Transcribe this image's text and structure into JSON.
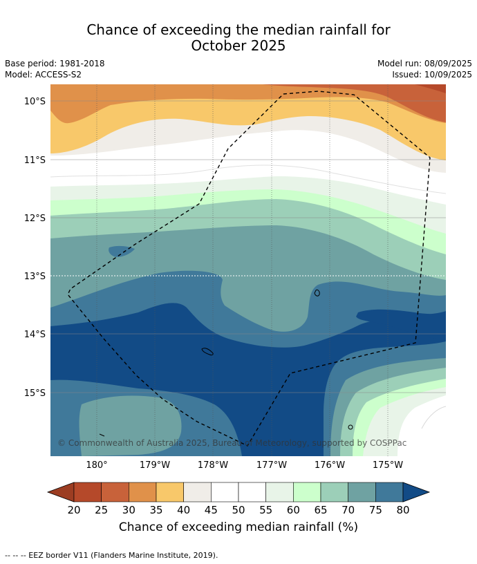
{
  "header": {
    "title_line1": "Chance of exceeding the median rainfall for",
    "title_line2": "October 2025",
    "base_period": "Base period: 1981-2018",
    "model": "Model: ACCESS-S2",
    "model_run": "Model run: 08/09/2025",
    "issued": "Issued: 10/09/2025"
  },
  "map": {
    "lat_labels": [
      "10°S",
      "11°S",
      "12°S",
      "13°S",
      "14°S",
      "15°S"
    ],
    "lon_labels": [
      "180°",
      "179°W",
      "178°W",
      "177°W",
      "176°W",
      "175°W"
    ],
    "copyright": "© Commonwealth of Australia 2025, Bureau of Meteorology, supported by COSPPac",
    "eez_boundary_style": "dashed"
  },
  "colorbar": {
    "ticks": [
      "20",
      "25",
      "30",
      "35",
      "40",
      "45",
      "50",
      "55",
      "60",
      "65",
      "70",
      "75",
      "80"
    ],
    "colors": [
      "#9c3d22",
      "#b5492a",
      "#c8623a",
      "#e0914a",
      "#f8c86a",
      "#f0ede8",
      "#ffffff",
      "#ffffff",
      "#e8f4e8",
      "#ccffcc",
      "#9ccfb8",
      "#6fa2a2",
      "#40799a",
      "#124b86"
    ],
    "label": "Chance of exceeding median rainfall (%)"
  },
  "footer": {
    "legend_text": "--  --  -- EEZ border V11 (Flanders Marine Institute, 2019)."
  }
}
